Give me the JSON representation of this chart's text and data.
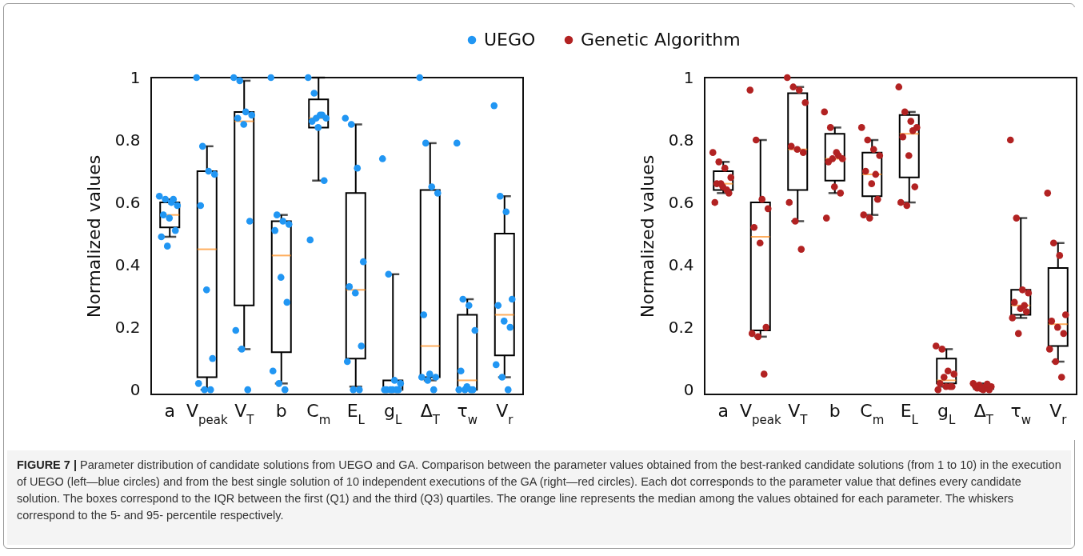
{
  "chart_data": [
    {
      "type": "box",
      "ylabel": "Normalized values",
      "categories": [
        "a",
        "V$_{peak}$",
        "V$_{T}$",
        "b",
        "C$_{m}$",
        "E$_{L}$",
        "g$_{L}$",
        "Δ$_{T}$",
        "τ$_{w}$",
        "V$_{r}$"
      ],
      "ylim": [
        -0.015,
        1
      ],
      "yticks": [
        0,
        0.2,
        0.4,
        0.6,
        0.8,
        1
      ],
      "grid": false,
      "legend": "top",
      "marker": "circle",
      "series": [
        {
          "type": "box",
          "color": "#000000",
          "boxes": [
            {
              "low": 0.49,
              "q1": 0.52,
              "median": 0.56,
              "q3": 0.6,
              "high": 0.61
            },
            {
              "low": 0,
              "q1": 0.04,
              "median": 0.45,
              "q3": 0.7,
              "high": 0.78
            },
            {
              "low": 0.13,
              "q1": 0.27,
              "median": 0.86,
              "q3": 0.89,
              "high": 0.99
            },
            {
              "low": 0.02,
              "q1": 0.12,
              "median": 0.43,
              "q3": 0.54,
              "high": 0.56
            },
            {
              "low": 0.67,
              "q1": 0.84,
              "median": 0.87,
              "q3": 0.93,
              "high": 1
            },
            {
              "low": 0.01,
              "q1": 0.1,
              "median": 0.32,
              "q3": 0.63,
              "high": 0.85
            },
            {
              "low": 0,
              "q1": 0,
              "median": 0,
              "q3": 0.03,
              "high": 0.37
            },
            {
              "low": 0.03,
              "q1": 0.04,
              "median": 0.14,
              "q3": 0.64,
              "high": 0.79
            },
            {
              "low": 0,
              "q1": 0,
              "median": 0.03,
              "q3": 0.24,
              "high": 0.29
            },
            {
              "low": 0.04,
              "q1": 0.11,
              "median": 0.24,
              "q3": 0.5,
              "high": 0.62
            }
          ]
        },
        {
          "type": "scatter",
          "name": "UEGO",
          "color": "#2196f3",
          "x": [
            "a",
            "a",
            "a",
            "a",
            "a",
            "a",
            "a",
            "a",
            "a",
            "a",
            "V$_{peak}$",
            "V$_{peak}$",
            "V$_{peak}$",
            "V$_{peak}$",
            "V$_{peak}$",
            "V$_{peak}$",
            "V$_{peak}$",
            "V$_{peak}$",
            "V$_{peak}$",
            "V$_{peak}$",
            "V$_{T}$",
            "V$_{T}$",
            "V$_{T}$",
            "V$_{T}$",
            "V$_{T}$",
            "V$_{T}$",
            "V$_{T}$",
            "V$_{T}$",
            "V$_{T}$",
            "V$_{T}$",
            "b",
            "b",
            "b",
            "b",
            "b",
            "b",
            "b",
            "b",
            "b",
            "b",
            "C$_{m}$",
            "C$_{m}$",
            "C$_{m}$",
            "C$_{m}$",
            "C$_{m}$",
            "C$_{m}$",
            "C$_{m}$",
            "C$_{m}$",
            "C$_{m}$",
            "C$_{m}$",
            "E$_{L}$",
            "E$_{L}$",
            "E$_{L}$",
            "E$_{L}$",
            "E$_{L}$",
            "E$_{L}$",
            "E$_{L}$",
            "E$_{L}$",
            "E$_{L}$",
            "E$_{L}$",
            "g$_{L}$",
            "g$_{L}$",
            "g$_{L}$",
            "g$_{L}$",
            "g$_{L}$",
            "g$_{L}$",
            "g$_{L}$",
            "g$_{L}$",
            "g$_{L}$",
            "g$_{L}$",
            "Δ$_{T}$",
            "Δ$_{T}$",
            "Δ$_{T}$",
            "Δ$_{T}$",
            "Δ$_{T}$",
            "Δ$_{T}$",
            "Δ$_{T}$",
            "Δ$_{T}$",
            "Δ$_{T}$",
            "Δ$_{T}$",
            "τ$_{w}$",
            "τ$_{w}$",
            "τ$_{w}$",
            "τ$_{w}$",
            "τ$_{w}$",
            "τ$_{w}$",
            "τ$_{w}$",
            "τ$_{w}$",
            "τ$_{w}$",
            "τ$_{w}$",
            "V$_{r}$",
            "V$_{r}$",
            "V$_{r}$",
            "V$_{r}$",
            "V$_{r}$",
            "V$_{r}$",
            "V$_{r}$",
            "V$_{r}$",
            "V$_{r}$",
            "V$_{r}$"
          ],
          "values": [
            0.62,
            0.61,
            0.6,
            0.59,
            0.56,
            0.55,
            0.51,
            0.49,
            0.46,
            0.61,
            1,
            0.78,
            0.7,
            0.69,
            0.59,
            0.32,
            0.1,
            0.02,
            0,
            0,
            1,
            0.99,
            0.89,
            0.88,
            0.87,
            0.85,
            0.54,
            0.19,
            0.13,
            0,
            1,
            0.56,
            0.54,
            0.53,
            0.51,
            0.36,
            0.28,
            0.06,
            0.02,
            0,
            1,
            0.95,
            0.88,
            0.87,
            0.86,
            0.84,
            0.67,
            0.48,
            0.87,
            0.88,
            0.87,
            0.85,
            0.71,
            0.41,
            0.33,
            0.31,
            0.14,
            0.09,
            0,
            0,
            0.74,
            0.37,
            0.03,
            0.02,
            0,
            0,
            0,
            0,
            0,
            0,
            1,
            0.79,
            0.65,
            0.63,
            0.24,
            0.05,
            0.04,
            0.04,
            0.03,
            0,
            0.79,
            0.29,
            0.27,
            0.19,
            0.06,
            0.01,
            0,
            0,
            0,
            0,
            0.91,
            0.62,
            0.57,
            0.29,
            0.27,
            0.22,
            0.2,
            0.08,
            0.04,
            0
          ]
        }
      ]
    },
    {
      "type": "box",
      "ylabel": "Normalized values",
      "categories": [
        "a",
        "V$_{peak}$",
        "V$_{T}$",
        "b",
        "C$_{m}$",
        "E$_{L}$",
        "g$_{L}$",
        "Δ$_{T}$",
        "τ$_{w}$",
        "V$_{r}$"
      ],
      "ylim": [
        -0.015,
        1
      ],
      "yticks": [
        0,
        0.2,
        0.4,
        0.6,
        0.8,
        1
      ],
      "grid": false,
      "marker": "circle",
      "series": [
        {
          "type": "box",
          "color": "#000000",
          "boxes": [
            {
              "low": 0.63,
              "q1": 0.64,
              "median": 0.66,
              "q3": 0.7,
              "high": 0.73
            },
            {
              "low": 0.17,
              "q1": 0.19,
              "median": 0.49,
              "q3": 0.6,
              "high": 0.8
            },
            {
              "low": 0.54,
              "q1": 0.64,
              "median": 0.77,
              "q3": 0.95,
              "high": 0.97
            },
            {
              "low": 0.63,
              "q1": 0.67,
              "median": 0.74,
              "q3": 0.82,
              "high": 0.84
            },
            {
              "low": 0.56,
              "q1": 0.62,
              "median": 0.69,
              "q3": 0.76,
              "high": 0.8
            },
            {
              "low": 0.6,
              "q1": 0.68,
              "median": 0.82,
              "q3": 0.88,
              "high": 0.89
            },
            {
              "low": 0.01,
              "q1": 0.02,
              "median": 0.03,
              "q3": 0.1,
              "high": 0.13
            },
            {
              "low": 0,
              "q1": 0.002,
              "median": 0.008,
              "q3": 0.014,
              "high": 0.02
            },
            {
              "low": 0.23,
              "q1": 0.24,
              "median": 0.27,
              "q3": 0.32,
              "high": 0.55
            },
            {
              "low": 0.09,
              "q1": 0.14,
              "median": 0.21,
              "q3": 0.39,
              "high": 0.47
            }
          ]
        },
        {
          "type": "scatter",
          "name": "Genetic Algorithm",
          "color": "#b22222",
          "x": [
            "a",
            "a",
            "a",
            "a",
            "a",
            "a",
            "a",
            "a",
            "a",
            "a",
            "V$_{peak}$",
            "V$_{peak}$",
            "V$_{peak}$",
            "V$_{peak}$",
            "V$_{peak}$",
            "V$_{peak}$",
            "V$_{peak}$",
            "V$_{peak}$",
            "V$_{peak}$",
            "V$_{peak}$",
            "V$_{T}$",
            "V$_{T}$",
            "V$_{T}$",
            "V$_{T}$",
            "V$_{T}$",
            "V$_{T}$",
            "V$_{T}$",
            "V$_{T}$",
            "V$_{T}$",
            "V$_{T}$",
            "b",
            "b",
            "b",
            "b",
            "b",
            "b",
            "b",
            "b",
            "b",
            "b",
            "C$_{m}$",
            "C$_{m}$",
            "C$_{m}$",
            "C$_{m}$",
            "C$_{m}$",
            "C$_{m}$",
            "C$_{m}$",
            "C$_{m}$",
            "C$_{m}$",
            "C$_{m}$",
            "E$_{L}$",
            "E$_{L}$",
            "E$_{L}$",
            "E$_{L}$",
            "E$_{L}$",
            "E$_{L}$",
            "E$_{L}$",
            "E$_{L}$",
            "E$_{L}$",
            "E$_{L}$",
            "g$_{L}$",
            "g$_{L}$",
            "g$_{L}$",
            "g$_{L}$",
            "g$_{L}$",
            "g$_{L}$",
            "g$_{L}$",
            "g$_{L}$",
            "g$_{L}$",
            "g$_{L}$",
            "Δ$_{T}$",
            "Δ$_{T}$",
            "Δ$_{T}$",
            "Δ$_{T}$",
            "Δ$_{T}$",
            "Δ$_{T}$",
            "Δ$_{T}$",
            "Δ$_{T}$",
            "Δ$_{T}$",
            "Δ$_{T}$",
            "τ$_{w}$",
            "τ$_{w}$",
            "τ$_{w}$",
            "τ$_{w}$",
            "τ$_{w}$",
            "τ$_{w}$",
            "τ$_{w}$",
            "τ$_{w}$",
            "τ$_{w}$",
            "τ$_{w}$",
            "V$_{r}$",
            "V$_{r}$",
            "V$_{r}$",
            "V$_{r}$",
            "V$_{r}$",
            "V$_{r}$",
            "V$_{r}$",
            "V$_{r}$",
            "V$_{r}$",
            "V$_{r}$"
          ],
          "values": [
            0.76,
            0.73,
            0.71,
            0.68,
            0.66,
            0.65,
            0.63,
            0.6,
            0.66,
            0.64,
            0.96,
            0.8,
            0.61,
            0.58,
            0.52,
            0.47,
            0.2,
            0.18,
            0.17,
            0.05,
            1,
            0.97,
            0.96,
            0.92,
            0.78,
            0.77,
            0.76,
            0.6,
            0.54,
            0.45,
            0.89,
            0.84,
            0.76,
            0.74,
            0.73,
            0.65,
            0.63,
            0.55,
            0.74,
            0.75,
            0.84,
            0.8,
            0.77,
            0.75,
            0.7,
            0.66,
            0.61,
            0.56,
            0.55,
            0.69,
            0.97,
            0.89,
            0.86,
            0.84,
            0.81,
            0.75,
            0.65,
            0.6,
            0.59,
            0.83,
            0.14,
            0.13,
            0.06,
            0.05,
            0.02,
            0.01,
            0.01,
            0,
            0.04,
            0.01,
            0.02,
            0.015,
            0.01,
            0.01,
            0.005,
            0,
            0,
            0.012,
            0.003,
            0.018,
            0.8,
            0.55,
            0.32,
            0.31,
            0.28,
            0.26,
            0.25,
            0.23,
            0.18,
            0.27,
            0.63,
            0.47,
            0.43,
            0.24,
            0.22,
            0.2,
            0.18,
            0.13,
            0.09,
            0.04
          ]
        }
      ],
      "annotations": [
        "FIGURE 7 | Parameter distribution of candidate solutions from UEGO and GA. Comparison between the parameter values obtained from the best-ranked candidate solutions (from 1 to 10) in the execution of UEGO (left—blue circles) and from the best single solution of 10 independent executions of the GA (right—red circles). Each dot corresponds to the parameter value that defines every candidate solution. The boxes correspond to the IQR between the first (Q1) and the third (Q3) quartiles. The orange line represents the median among the values obtained for each parameter. The whiskers correspond to the 5- and 95- percentile respectively."
      ]
    }
  ]
}
